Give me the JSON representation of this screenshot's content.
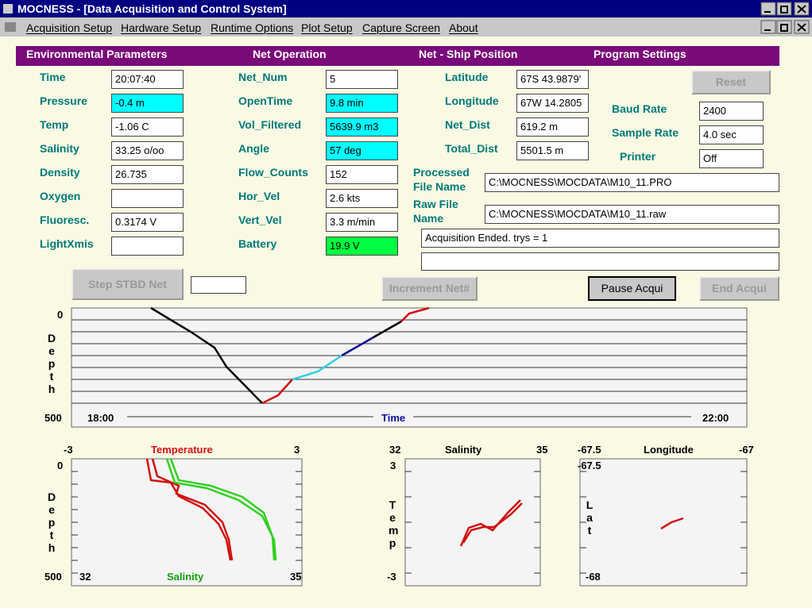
{
  "window": {
    "title": "MOCNESS - [Data Acquisition and Control System]"
  },
  "menu": {
    "items": [
      "Acquisition Setup",
      "Hardware Setup",
      "Runtime Options",
      "Plot Setup",
      "Capture Screen",
      "About"
    ]
  },
  "header": {
    "sections": [
      "Environmental Parameters",
      "Net Operation",
      "Net - Ship Position",
      "Program Settings"
    ]
  },
  "environmental": [
    {
      "label": "Time",
      "value": "20:07:40"
    },
    {
      "label": "Pressure",
      "value": "-0.4 m"
    },
    {
      "label": "Temp",
      "value": "-1.06 C"
    },
    {
      "label": "Salinity",
      "value": "33.25 o/oo"
    },
    {
      "label": "Density",
      "value": "26.735"
    },
    {
      "label": "Oxygen"
    },
    {
      "label": "Fluoresc.",
      "value": "0.3174 V"
    },
    {
      "label": "LightXmis"
    }
  ],
  "net_operation": [
    {
      "label": "Net_Num",
      "value": "5"
    },
    {
      "label": "OpenTime",
      "value": "9.8 min"
    },
    {
      "label": "Vol_Filtered",
      "value": "5639.9 m3"
    },
    {
      "label": "Angle",
      "value": "57 deg"
    },
    {
      "label": "Flow_Counts",
      "value": "152"
    },
    {
      "label": "Hor_Vel",
      "value": "2.6 kts"
    },
    {
      "label": "Vert_Vel",
      "value": "3.3 m/min"
    },
    {
      "label": "Battery",
      "value": "19.9 V"
    }
  ],
  "ship_position": [
    {
      "label": "Latitude",
      "value": "67S 43.9879'"
    },
    {
      "label": "Longitude",
      "value": "67W 14.2805"
    },
    {
      "label": "Net_Dist",
      "value": "619.2 m"
    },
    {
      "label": "Total_Dist",
      "value": "5501.5 m"
    }
  ],
  "program_settings": {
    "reset_button": "Reset",
    "fields": [
      {
        "label": "Baud Rate",
        "value": "2400"
      },
      {
        "label": "Sample Rate",
        "value": "4.0 sec"
      },
      {
        "label": "Printer",
        "value": "Off"
      }
    ]
  },
  "files": [
    {
      "label": "Processed File Name",
      "value": "C:\\MOCNESS\\MOCDATA\\M10_11.PRO"
    },
    {
      "label": "Raw File Name",
      "value": "C:\\MOCNESS\\MOCDATA\\M10_11.raw"
    }
  ],
  "status": {
    "message": "Acquisition Ended. trys = 1"
  },
  "buttons": [
    "Step STBD Net",
    "Increment Net#",
    "Pause Acqui",
    "End Acqui"
  ],
  "depth_plot": {
    "y_label": "Depth",
    "y_top": "0",
    "y_bottom": "500",
    "x_start": "18:00",
    "x_label": "Time",
    "x_end": "22:00"
  },
  "profile_plot": {
    "top_min": "-3",
    "top_label": "Temperature",
    "top_max": "3",
    "bottom_min": "32",
    "bottom_label": "Salinity",
    "bottom_max": "35",
    "y_label": "Depth",
    "y_top": "0",
    "y_bottom": "500"
  },
  "ts_plot": {
    "x_min": "32",
    "x_label": "Salinity",
    "x_max": "35",
    "y_label": "Temp",
    "y_top": "3",
    "y_bottom": "-3"
  },
  "position_plot": {
    "x_min": "-67.5",
    "x_label": "Longitude",
    "x_max": "-67",
    "y_label": "Lat",
    "y_top": "-67.5",
    "y_bottom": "-68"
  }
}
